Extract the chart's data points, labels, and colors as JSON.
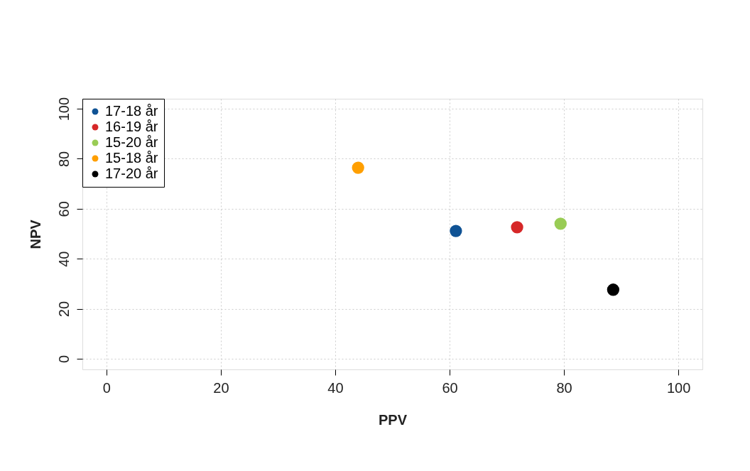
{
  "chart_data": {
    "type": "scatter",
    "xlabel": "PPV",
    "ylabel": "NPV",
    "xlim": [
      -4.2,
      104.2
    ],
    "ylim": [
      -4.3,
      104
    ],
    "xticks": [
      0,
      20,
      40,
      60,
      80,
      100
    ],
    "yticks": [
      0,
      20,
      40,
      60,
      80,
      100
    ],
    "grid": true,
    "legend": "top left",
    "marker": "circle",
    "series": [
      {
        "name": "17-18 år",
        "color": "#0f5294",
        "x": [
          61.1
        ],
        "values": [
          51.1
        ]
      },
      {
        "name": "16-19 år",
        "color": "#d62728",
        "x": [
          71.8
        ],
        "values": [
          52.6
        ]
      },
      {
        "name": "15-20 år",
        "color": "#99cc55",
        "x": [
          79.4
        ],
        "values": [
          54.0
        ]
      },
      {
        "name": "15-18 år",
        "color": "#ff9f00",
        "x": [
          44.0
        ],
        "values": [
          76.4
        ]
      },
      {
        "name": "17-20 år",
        "color": "#000000",
        "x": [
          88.6
        ],
        "values": [
          27.6
        ]
      }
    ]
  }
}
